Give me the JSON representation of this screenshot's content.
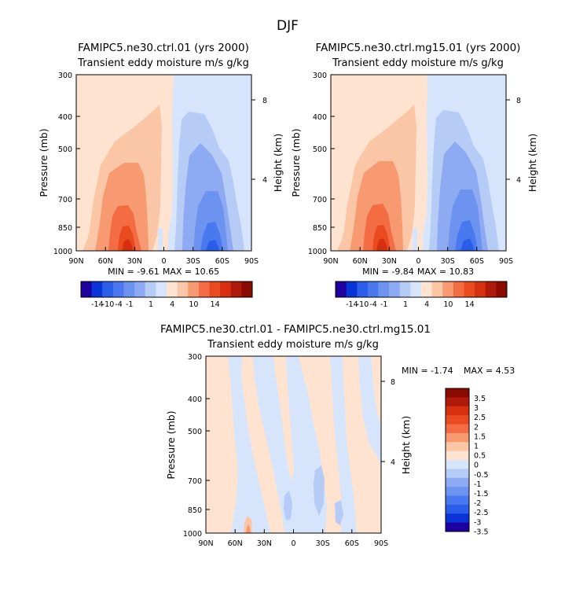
{
  "figure_title": "DJF",
  "cbar_upper_labels": [
    "-14",
    "-10",
    "-4",
    "-1",
    "1",
    "4",
    "10",
    "14"
  ],
  "colors": {
    "blue_scale": [
      "#1e00a0",
      "#0b34d8",
      "#2a5de9",
      "#4a78ee",
      "#6d93f0",
      "#8eaaf2",
      "#b6cbf6",
      "#d6e5fb"
    ],
    "red_scale": [
      "#fde3d0",
      "#fbc6a6",
      "#f79a72",
      "#f36c44",
      "#ea4a20",
      "#d63010",
      "#b01a08",
      "#8a0a00"
    ]
  },
  "chart_data": [
    {
      "type": "heatmap",
      "title": "FAMIPC5.ne30.ctrl.01 (yrs 2000)",
      "subtitle": "Transient eddy moisture m/s g/kg",
      "ylabel": "Pressure (mb)",
      "ylabel_right": "Height (km)",
      "x_ticks": [
        "90N",
        "60N",
        "30N",
        "0",
        "30S",
        "60S",
        "90S"
      ],
      "x_tick_values": [
        90,
        60,
        30,
        0,
        -30,
        -60,
        -90
      ],
      "y_ticks": [
        "300",
        "400",
        "500",
        "700",
        "850",
        "1000"
      ],
      "y_tick_values": [
        300,
        400,
        500,
        700,
        850,
        1000
      ],
      "y_right_ticks": [
        "8",
        "4"
      ],
      "y_right_tick_values": [
        8,
        4
      ],
      "xlim": [
        90,
        -90
      ],
      "ylim": [
        1000,
        300
      ],
      "min_label": "MIN = -9.61",
      "max_label": "MAX = 10.65",
      "min": -9.61,
      "max": 10.65,
      "contour_levels": [
        -14,
        -12,
        -10,
        -8,
        -4,
        -2,
        -1,
        0,
        1,
        2,
        4,
        8,
        10,
        12,
        14
      ],
      "colorbar_tick_labels": [
        "-14",
        "-10",
        "-4",
        "-1",
        "1",
        "4",
        "10",
        "14"
      ]
    },
    {
      "type": "heatmap",
      "title": "FAMIPC5.ne30.ctrl.mg15.01 (yrs 2000)",
      "subtitle": "Transient eddy moisture m/s g/kg",
      "ylabel": "Pressure (mb)",
      "ylabel_right": "Height (km)",
      "x_ticks": [
        "90N",
        "60N",
        "30N",
        "0",
        "30S",
        "60S",
        "90S"
      ],
      "x_tick_values": [
        90,
        60,
        30,
        0,
        -30,
        -60,
        -90
      ],
      "y_ticks": [
        "300",
        "400",
        "500",
        "700",
        "850",
        "1000"
      ],
      "y_tick_values": [
        300,
        400,
        500,
        700,
        850,
        1000
      ],
      "y_right_ticks": [
        "8",
        "4"
      ],
      "y_right_tick_values": [
        8,
        4
      ],
      "xlim": [
        90,
        -90
      ],
      "ylim": [
        1000,
        300
      ],
      "min_label": "MIN = -9.84",
      "max_label": "MAX = 10.83",
      "min": -9.84,
      "max": 10.83,
      "contour_levels": [
        -14,
        -12,
        -10,
        -8,
        -4,
        -2,
        -1,
        0,
        1,
        2,
        4,
        8,
        10,
        12,
        14
      ],
      "colorbar_tick_labels": [
        "-14",
        "-10",
        "-4",
        "-1",
        "1",
        "4",
        "10",
        "14"
      ]
    },
    {
      "type": "heatmap",
      "title": "FAMIPC5.ne30.ctrl.01 - FAMIPC5.ne30.ctrl.mg15.01",
      "subtitle": "Transient eddy moisture m/s g/kg",
      "ylabel": "Pressure (mb)",
      "ylabel_right": "Height (km)",
      "x_ticks": [
        "90N",
        "60N",
        "30N",
        "0",
        "30S",
        "60S",
        "90S"
      ],
      "x_tick_values": [
        90,
        60,
        30,
        0,
        -30,
        -60,
        -90
      ],
      "y_ticks": [
        "300",
        "400",
        "500",
        "700",
        "850",
        "1000"
      ],
      "y_tick_values": [
        300,
        400,
        500,
        700,
        850,
        1000
      ],
      "y_right_ticks": [
        "8",
        "4"
      ],
      "y_right_tick_values": [
        8,
        4
      ],
      "xlim": [
        90,
        -90
      ],
      "ylim": [
        1000,
        300
      ],
      "min_label": "MIN = -1.74",
      "max_label": "MAX = 4.53",
      "min": -1.74,
      "max": 4.53,
      "contour_levels": [
        -3.5,
        -3,
        -2.5,
        -2,
        -1.5,
        -1,
        -0.5,
        0,
        0.5,
        1,
        1.5,
        2,
        2.5,
        3,
        3.5
      ],
      "colorbar_tick_labels": [
        "3.5",
        "3",
        "2.5",
        "2",
        "1.5",
        "1",
        "0.5",
        "0",
        "-0.5",
        "-1",
        "-1.5",
        "-2",
        "-2.5",
        "-3",
        "-3.5"
      ]
    }
  ]
}
